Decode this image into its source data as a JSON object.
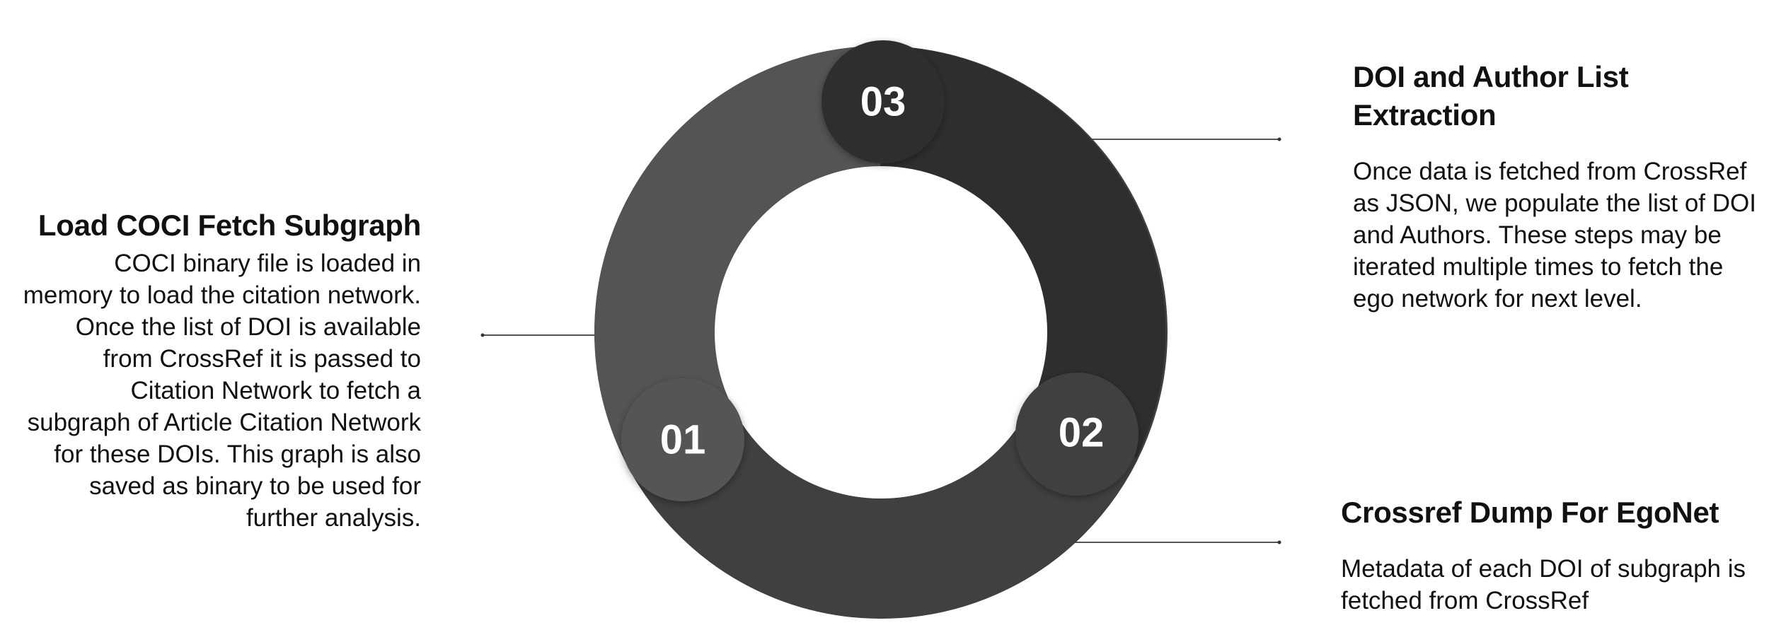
{
  "steps": [
    {
      "number": "01",
      "title": "Load COCI Fetch Subgraph",
      "description": "COCI binary file is loaded in memory to load the citation network. Once the list of DOI is available from CrossRef it is passed to Citation Network to fetch a subgraph of Article Citation Network for these DOIs. This graph is also saved as binary to be used for further analysis."
    },
    {
      "number": "02",
      "title": "Crossref Dump For EgoNet",
      "description": "Metadata of each DOI of subgraph is fetched from CrossRef"
    },
    {
      "number": "03",
      "title": "DOI and Author List Extraction",
      "description": "Once data is fetched from CrossRef as JSON, we populate the list of DOI and Authors. These steps may be iterated multiple times to fetch the ego network for next level."
    }
  ],
  "colors": {
    "segment_01": "#545454",
    "segment_02": "#404040",
    "segment_03": "#2e2e2e",
    "connector": "#555555",
    "text": "#111111"
  }
}
